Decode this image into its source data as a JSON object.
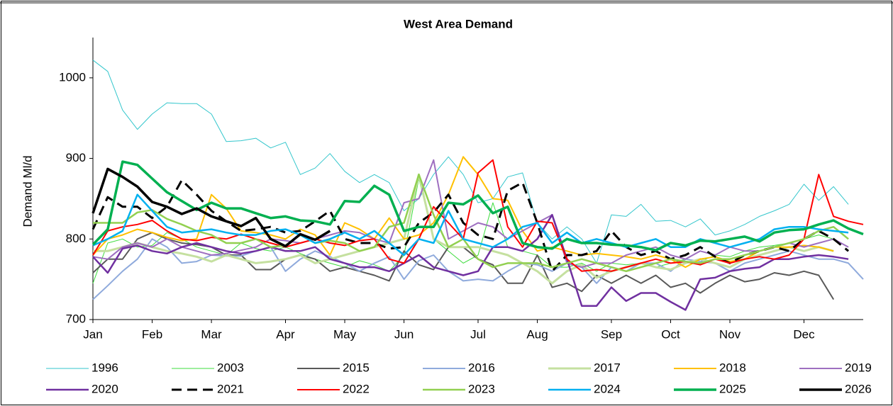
{
  "chart_data": {
    "type": "line",
    "title": "West Area Demand",
    "y_label": "Demand Ml/d",
    "categories": [
      "Jan",
      null,
      null,
      null,
      "Feb",
      null,
      null,
      null,
      "Mar",
      null,
      null,
      null,
      null,
      "Apr",
      null,
      null,
      null,
      "May",
      null,
      null,
      null,
      "Jun",
      null,
      null,
      null,
      null,
      "Jul",
      null,
      null,
      null,
      "Aug",
      null,
      null,
      null,
      null,
      "Sep",
      null,
      null,
      null,
      "Oct",
      null,
      null,
      null,
      "Nov",
      null,
      null,
      null,
      null,
      "Dec",
      null,
      null,
      null,
      null
    ],
    "ylim": [
      700,
      1050
    ],
    "yticks": [
      700,
      800,
      900,
      1000
    ],
    "series": [
      {
        "name": "1996",
        "color": "#33c6cc",
        "values": [
          1022,
          1008,
          960,
          936,
          955,
          969,
          968,
          968,
          955,
          921,
          922,
          925,
          913,
          920,
          880,
          888,
          906,
          884,
          870,
          880,
          870,
          835,
          850,
          880,
          902,
          880,
          845,
          850,
          877,
          882,
          820,
          800,
          815,
          800,
          770,
          830,
          828,
          843,
          822,
          823,
          815,
          825,
          805,
          810,
          818,
          828,
          835,
          843,
          868,
          848,
          865,
          843,
          null
        ]
      },
      {
        "name": "2003",
        "color": "#3cdc3c",
        "values": [
          745,
          795,
          800,
          790,
          792,
          808,
          800,
          790,
          785,
          780,
          795,
          788,
          785,
          790,
          782,
          775,
          770,
          765,
          773,
          768,
          760,
          780,
          875,
          800,
          785,
          770,
          780,
          845,
          790,
          785,
          780,
          765,
          765,
          770,
          760,
          770,
          768,
          770,
          765,
          770,
          775,
          772,
          780,
          778,
          785,
          790,
          792,
          795,
          800,
          805,
          800,
          790,
          null
        ]
      },
      {
        "name": "2015",
        "color": "#595959",
        "values": [
          758,
          775,
          775,
          800,
          808,
          800,
          795,
          793,
          790,
          780,
          780,
          762,
          762,
          775,
          780,
          775,
          760,
          765,
          760,
          755,
          748,
          785,
          768,
          762,
          790,
          790,
          775,
          768,
          745,
          745,
          780,
          740,
          745,
          735,
          755,
          745,
          755,
          745,
          755,
          740,
          745,
          733,
          745,
          755,
          747,
          750,
          758,
          755,
          760,
          755,
          725,
          null,
          null
        ]
      },
      {
        "name": "2016",
        "color": "#8faadc",
        "values": [
          725,
          742,
          760,
          775,
          800,
          790,
          770,
          772,
          780,
          779,
          779,
          785,
          790,
          760,
          775,
          785,
          778,
          770,
          760,
          770,
          778,
          750,
          773,
          780,
          760,
          748,
          750,
          748,
          760,
          770,
          768,
          760,
          770,
          765,
          745,
          765,
          760,
          770,
          770,
          760,
          775,
          772,
          770,
          760,
          770,
          775,
          780,
          785,
          780,
          775,
          775,
          770,
          750
        ]
      },
      {
        "name": "2017",
        "color": "#c5e0a0",
        "values": [
          785,
          785,
          790,
          795,
          790,
          785,
          782,
          778,
          772,
          780,
          775,
          770,
          772,
          775,
          780,
          770,
          775,
          780,
          785,
          790,
          795,
          800,
          880,
          800,
          790,
          790,
          790,
          785,
          780,
          770,
          760,
          745,
          760,
          768,
          752,
          760,
          765,
          770,
          765,
          762,
          770,
          775,
          770,
          765,
          775,
          780,
          785,
          790,
          785,
          790,
          785,
          null,
          null
        ]
      },
      {
        "name": "2018",
        "color": "#ffc000",
        "values": [
          780,
          800,
          805,
          812,
          808,
          802,
          798,
          800,
          855,
          838,
          810,
          808,
          805,
          800,
          812,
          805,
          780,
          820,
          812,
          800,
          826,
          800,
          805,
          820,
          855,
          902,
          880,
          850,
          848,
          810,
          785,
          790,
          785,
          780,
          782,
          780,
          778,
          775,
          780,
          775,
          765,
          775,
          778,
          772,
          775,
          785,
          790,
          790,
          792,
          790,
          785,
          null,
          null
        ]
      },
      {
        "name": "2019",
        "color": "#9e6fc0",
        "values": [
          778,
          775,
          790,
          795,
          790,
          800,
          790,
          785,
          780,
          782,
          786,
          790,
          800,
          798,
          795,
          800,
          805,
          810,
          808,
          800,
          795,
          845,
          850,
          898,
          800,
          810,
          820,
          815,
          800,
          810,
          820,
          830,
          770,
          765,
          770,
          770,
          780,
          785,
          790,
          780,
          775,
          785,
          780,
          790,
          785,
          785,
          790,
          795,
          790,
          795,
          800,
          790,
          null
        ]
      },
      {
        "name": "2020",
        "color": "#7030a0",
        "values": [
          778,
          758,
          788,
          792,
          785,
          782,
          790,
          795,
          790,
          785,
          782,
          785,
          790,
          785,
          785,
          790,
          775,
          770,
          765,
          765,
          760,
          770,
          780,
          765,
          760,
          755,
          760,
          790,
          790,
          785,
          800,
          830,
          775,
          717,
          717,
          740,
          723,
          733,
          733,
          722,
          712,
          750,
          752,
          760,
          763,
          765,
          775,
          775,
          778,
          780,
          778,
          775,
          null
        ]
      },
      {
        "name": "2021",
        "color": "#000000",
        "values": [
          812,
          852,
          840,
          840,
          826,
          840,
          873,
          855,
          835,
          822,
          810,
          812,
          815,
          808,
          810,
          822,
          835,
          800,
          795,
          795,
          788,
          790,
          820,
          833,
          855,
          820,
          805,
          800,
          860,
          870,
          820,
          760,
          780,
          780,
          785,
          810,
          790,
          780,
          785,
          775,
          780,
          790,
          778,
          770,
          780,
          785,
          790,
          785,
          800,
          810,
          800,
          785,
          null
        ]
      },
      {
        "name": "2022",
        "color": "#ff0000",
        "values": [
          780,
          810,
          815,
          818,
          823,
          810,
          800,
          798,
          802,
          800,
          806,
          800,
          795,
          790,
          795,
          800,
          795,
          792,
          798,
          800,
          775,
          770,
          800,
          840,
          820,
          800,
          882,
          898,
          815,
          790,
          822,
          820,
          775,
          760,
          762,
          760,
          765,
          770,
          775,
          770,
          772,
          768,
          775,
          770,
          775,
          778,
          775,
          780,
          800,
          880,
          828,
          822,
          818
        ]
      },
      {
        "name": "2023",
        "color": "#92d050",
        "values": [
          820,
          820,
          820,
          833,
          836,
          825,
          818,
          810,
          805,
          795,
          795,
          800,
          790,
          792,
          805,
          795,
          798,
          795,
          785,
          790,
          815,
          820,
          880,
          830,
          790,
          800,
          775,
          765,
          770,
          770,
          770,
          765,
          770,
          775,
          770,
          765,
          760,
          765,
          770,
          775,
          772,
          770,
          775,
          775,
          780,
          785,
          790,
          795,
          800,
          810,
          815,
          800,
          null
        ]
      },
      {
        "name": "2024",
        "color": "#00b0f0",
        "values": [
          792,
          800,
          810,
          855,
          835,
          815,
          808,
          810,
          812,
          808,
          805,
          805,
          810,
          812,
          805,
          795,
          800,
          808,
          800,
          810,
          795,
          780,
          800,
          795,
          835,
          800,
          795,
          790,
          800,
          815,
          820,
          795,
          808,
          795,
          800,
          795,
          790,
          795,
          800,
          790,
          790,
          800,
          795,
          790,
          795,
          800,
          812,
          815,
          815,
          812,
          810,
          808,
          null
        ]
      },
      {
        "name": "2025",
        "color": "#00b050",
        "values": [
          793,
          812,
          896,
          892,
          875,
          858,
          847,
          836,
          845,
          838,
          838,
          832,
          826,
          828,
          823,
          822,
          818,
          847,
          846,
          866,
          855,
          810,
          815,
          815,
          845,
          843,
          854,
          832,
          840,
          795,
          790,
          788,
          800,
          795,
          795,
          793,
          792,
          790,
          786,
          795,
          792,
          798,
          797,
          800,
          803,
          797,
          808,
          811,
          812,
          818,
          823,
          813,
          806
        ]
      },
      {
        "name": "2026",
        "color": "#000000",
        "values": [
          832,
          887,
          877,
          865,
          846,
          840,
          831,
          838,
          828,
          822,
          816,
          826,
          800,
          791,
          806,
          799,
          810,
          null,
          null,
          null,
          null,
          null,
          null,
          null,
          null,
          null,
          null,
          null,
          null,
          null,
          null,
          null,
          null,
          null,
          null,
          null,
          null,
          null,
          null,
          null,
          null,
          null,
          null,
          null,
          null,
          null,
          null,
          null,
          null,
          null,
          null,
          null,
          null
        ]
      }
    ]
  }
}
